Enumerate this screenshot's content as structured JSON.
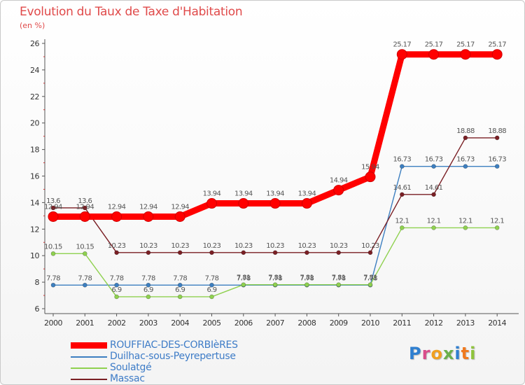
{
  "chart_data": {
    "type": "line",
    "title": "Evolution du Taux de Taxe d'Habitation",
    "subtitle": "(en %)",
    "xlabel": "",
    "ylabel": "",
    "categories": [
      "2000",
      "2001",
      "2002",
      "2003",
      "2004",
      "2005",
      "2006",
      "2007",
      "2008",
      "2009",
      "2010",
      "2011",
      "2012",
      "2013",
      "2014"
    ],
    "ylim": [
      6,
      26
    ],
    "yticks": [
      6,
      8,
      10,
      12,
      14,
      16,
      18,
      20,
      22,
      24,
      26
    ],
    "grid": false,
    "legend_position": "bottom-left",
    "series": [
      {
        "name": "ROUFFIAC-DES-CORBIèRES",
        "color": "#ff0000",
        "values": [
          12.94,
          12.94,
          12.94,
          12.94,
          12.94,
          13.94,
          13.94,
          13.94,
          13.94,
          14.94,
          15.94,
          25.17,
          25.17,
          25.17,
          25.17
        ],
        "labels": [
          "12.94",
          "12.94",
          "12.94",
          "12.94",
          "12.94",
          "13.94",
          "13.94",
          "13.94",
          "13.94",
          "14.94",
          "15.94",
          "25.17",
          "25.17",
          "25.17",
          "25.17"
        ]
      },
      {
        "name": "Duilhac-sous-Peyrepertuse",
        "color": "#3d7fc0",
        "values": [
          7.78,
          7.78,
          7.78,
          7.78,
          7.78,
          7.78,
          7.78,
          7.78,
          7.78,
          7.78,
          7.78,
          16.73,
          16.73,
          16.73,
          16.73
        ],
        "labels": [
          "7.78",
          "7.78",
          "7.78",
          "7.78",
          "7.78",
          "7.78",
          "7.78",
          "7.78",
          "7.78",
          "7.78",
          "7.78",
          "16.73",
          "16.73",
          "16.73",
          "16.73"
        ]
      },
      {
        "name": "Soulatgé",
        "color": "#8fd14f",
        "values": [
          10.15,
          10.15,
          6.9,
          6.9,
          6.9,
          6.9,
          7.81,
          7.81,
          7.81,
          7.81,
          7.81,
          12.1,
          12.1,
          12.1,
          12.1
        ],
        "labels": [
          "10.15",
          "10.15",
          "6.9",
          "6.9",
          "6.9",
          "6.9",
          "7.81",
          "7.81",
          "7.81",
          "7.81",
          "7.81",
          "12.1",
          "12.1",
          "12.1",
          "12.1"
        ]
      },
      {
        "name": "Massac",
        "color": "#7a1f24",
        "values": [
          13.6,
          13.6,
          10.23,
          10.23,
          10.23,
          10.23,
          10.23,
          10.23,
          10.23,
          10.23,
          10.23,
          14.61,
          14.61,
          18.88,
          18.88
        ],
        "labels": [
          "13.6",
          "13.6",
          "10.23",
          "10.23",
          "10.23",
          "10.23",
          "10.23",
          "10.23",
          "10.23",
          "10.23",
          "10.23",
          "14.61",
          "14.61",
          "18.88",
          "18.88"
        ]
      }
    ]
  },
  "brand": {
    "letters": [
      "P",
      "r",
      "o",
      "x",
      "i",
      "t",
      "i"
    ],
    "colors": [
      "#2f7fd0",
      "#d94c8a",
      "#f0a020",
      "#6ab04c",
      "#2f7fd0",
      "#f07a20",
      "#8fc43c"
    ]
  }
}
